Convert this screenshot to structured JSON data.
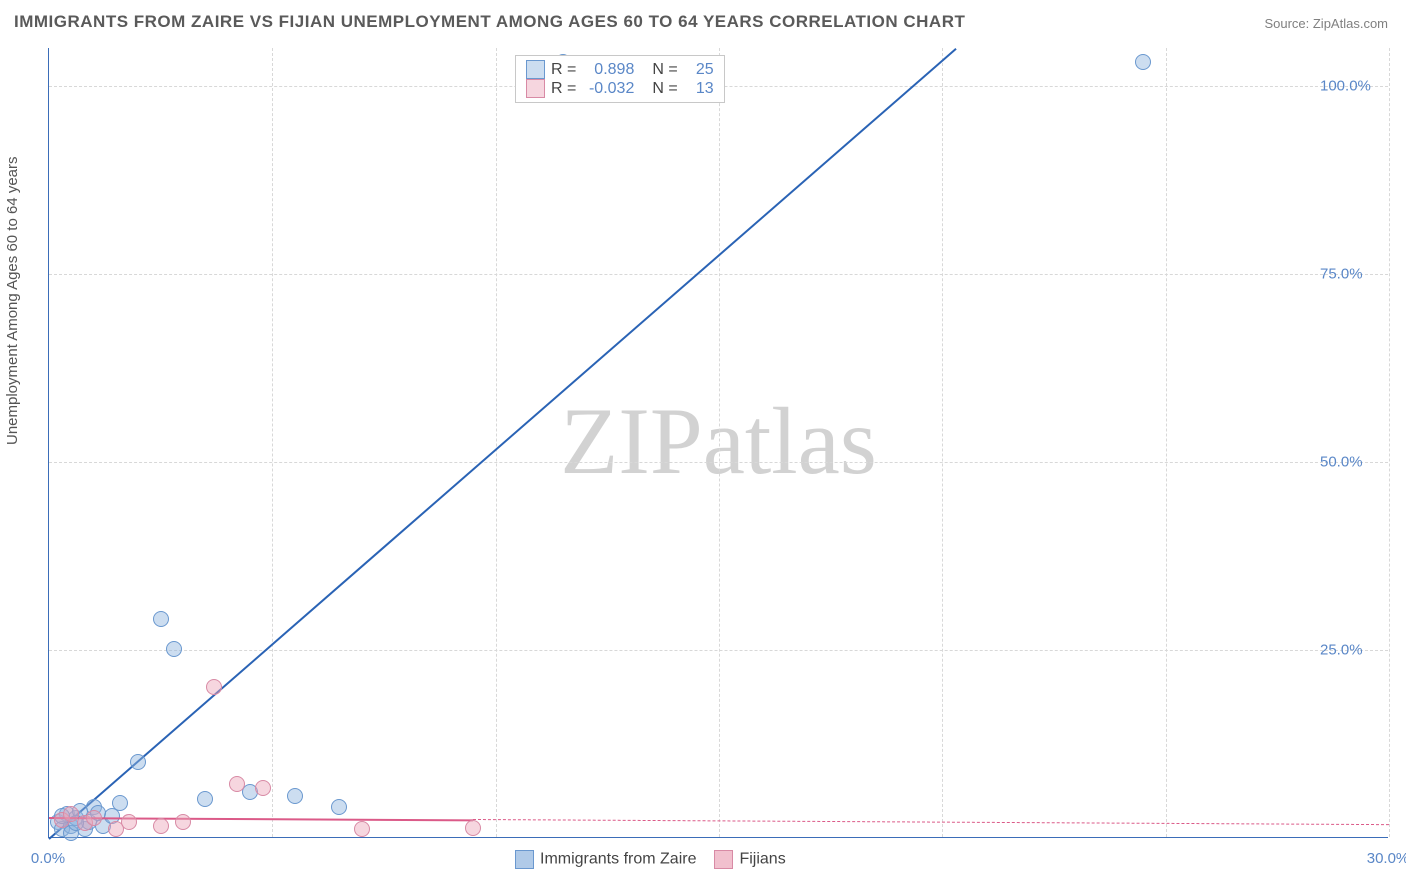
{
  "title": "IMMIGRANTS FROM ZAIRE VS FIJIAN UNEMPLOYMENT AMONG AGES 60 TO 64 YEARS CORRELATION CHART",
  "source": "Source: ZipAtlas.com",
  "watermark_a": "ZIP",
  "watermark_b": "atlas",
  "ylabel": "Unemployment Among Ages 60 to 64 years",
  "chart": {
    "type": "scatter",
    "xlim": [
      0,
      30
    ],
    "ylim": [
      0,
      105
    ],
    "xticks": [
      0,
      5,
      10,
      15,
      20,
      25,
      30
    ],
    "xtick_labels": [
      "0.0%",
      "",
      "",
      "",
      "",
      "",
      "30.0%"
    ],
    "yticks": [
      25,
      50,
      75,
      100
    ],
    "ytick_labels": [
      "25.0%",
      "50.0%",
      "75.0%",
      "100.0%"
    ],
    "axis_color": "#3b6db8",
    "grid_color": "#d8d8d8",
    "background_color": "#ffffff",
    "tick_label_color": "#5a87c7",
    "marker_radius": 8
  },
  "series": [
    {
      "name": "Immigrants from Zaire",
      "color_fill": "rgba(143,180,222,0.45)",
      "color_stroke": "#6a98cf",
      "reg_color": "#2a63b5",
      "R": "0.898",
      "N": "25",
      "points": [
        [
          0.2,
          2.0
        ],
        [
          0.3,
          1.0
        ],
        [
          0.4,
          3.0
        ],
        [
          0.5,
          1.5
        ],
        [
          0.6,
          2.5
        ],
        [
          0.8,
          1.0
        ],
        [
          0.7,
          3.5
        ],
        [
          0.9,
          2.0
        ],
        [
          1.0,
          4.0
        ],
        [
          1.2,
          1.5
        ],
        [
          1.4,
          2.8
        ],
        [
          1.1,
          3.2
        ],
        [
          1.6,
          4.5
        ],
        [
          2.0,
          10.0
        ],
        [
          2.5,
          29.0
        ],
        [
          2.8,
          25.0
        ],
        [
          3.5,
          5.0
        ],
        [
          4.5,
          6.0
        ],
        [
          5.5,
          5.5
        ],
        [
          6.5,
          4.0
        ],
        [
          11.5,
          103.0
        ],
        [
          24.5,
          103.0
        ],
        [
          0.5,
          0.5
        ],
        [
          0.3,
          2.8
        ],
        [
          0.6,
          1.8
        ]
      ],
      "reg": {
        "x1": 0,
        "y1": 0,
        "x2": 20.3,
        "y2": 105,
        "dash_from_x": 20.3
      }
    },
    {
      "name": "Fijians",
      "color_fill": "rgba(235,165,185,0.45)",
      "color_stroke": "#d88aa5",
      "reg_color": "#db5a88",
      "R": "-0.032",
      "N": "13",
      "points": [
        [
          0.3,
          2.2
        ],
        [
          0.5,
          3.0
        ],
        [
          0.8,
          1.8
        ],
        [
          1.0,
          2.5
        ],
        [
          1.5,
          1.0
        ],
        [
          1.8,
          2.0
        ],
        [
          2.5,
          1.5
        ],
        [
          3.0,
          2.0
        ],
        [
          3.7,
          20.0
        ],
        [
          4.2,
          7.0
        ],
        [
          4.8,
          6.5
        ],
        [
          7.0,
          1.0
        ],
        [
          9.5,
          1.2
        ]
      ],
      "reg": {
        "x1": 0,
        "y1": 2.8,
        "x2": 30,
        "y2": 1.8,
        "dash_from_x": 9.5
      }
    }
  ],
  "legend_top": {
    "r_label": "R =",
    "n_label": "N ="
  },
  "legend_bottom": [
    {
      "label": "Immigrants from Zaire",
      "fill": "rgba(143,180,222,0.7)",
      "stroke": "#6a98cf"
    },
    {
      "label": "Fijians",
      "fill": "rgba(235,165,185,0.7)",
      "stroke": "#d88aa5"
    }
  ]
}
